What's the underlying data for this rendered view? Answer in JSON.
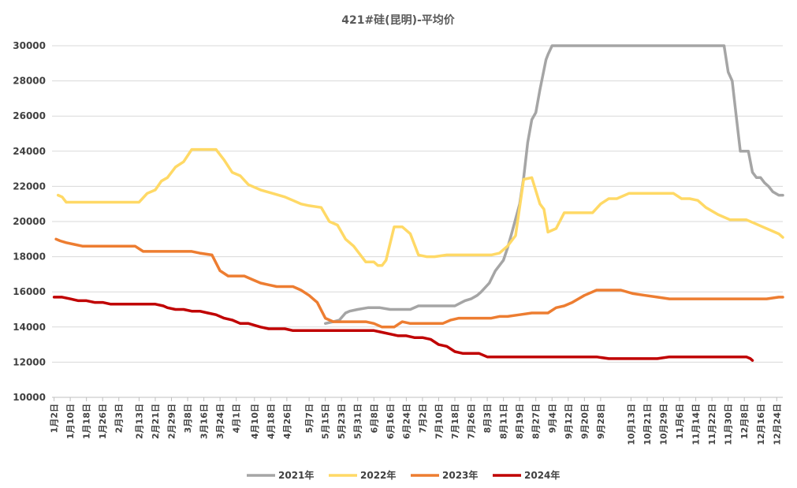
{
  "chart_data": {
    "type": "line",
    "title": "421#硅(昆明)-平均价",
    "xlabel": "",
    "ylabel": "",
    "ylim": [
      10000,
      30000
    ],
    "yticks": [
      10000,
      12000,
      14000,
      16000,
      18000,
      20000,
      22000,
      24000,
      26000,
      28000,
      30000
    ],
    "xlim": [
      1,
      362
    ],
    "grid": "horizontal",
    "legend_position": "bottom",
    "categories": [
      "1月2日",
      "1月10日",
      "1月18日",
      "1月26日",
      "2月3日",
      "2月13日",
      "2月21日",
      "2月29日",
      "3月8日",
      "3月16日",
      "3月24日",
      "4月1日",
      "4月10日",
      "4月18日",
      "4月26日",
      "5月7日",
      "5月15日",
      "5月23日",
      "5月31日",
      "6月8日",
      "6月16日",
      "6月24日",
      "7月2日",
      "7月10日",
      "7月18日",
      "7月26日",
      "8月3日",
      "8月11日",
      "8月19日",
      "8月27日",
      "9月4日",
      "9月12日",
      "9月20日",
      "9月28日",
      "10月13日",
      "10月21日",
      "10月29日",
      "11月6日",
      "11月14日",
      "11月22日",
      "11月30日",
      "12月8日",
      "12月16日",
      "12月24日"
    ],
    "category_days": [
      2,
      10,
      18,
      26,
      34,
      44,
      52,
      60,
      68,
      76,
      84,
      92,
      101,
      109,
      117,
      128,
      136,
      144,
      152,
      160,
      168,
      176,
      184,
      192,
      200,
      208,
      216,
      224,
      232,
      240,
      248,
      256,
      264,
      272,
      287,
      295,
      303,
      311,
      319,
      327,
      335,
      343,
      351,
      359
    ],
    "series": [
      {
        "name": "2021年",
        "color": "#a5a5a5",
        "x": [
          136,
          140,
          143,
          146,
          148,
          152,
          157,
          163,
          168,
          174,
          178,
          182,
          186,
          195,
          200,
          205,
          208,
          211,
          213,
          217,
          220,
          224,
          226,
          228,
          232,
          234,
          236,
          238,
          240,
          242,
          245,
          246,
          248,
          250,
          252,
          254,
          256,
          258,
          260,
          262,
          264,
          266,
          268,
          270,
          272,
          274,
          276,
          278,
          280,
          282,
          284,
          286,
          288,
          290,
          292,
          294,
          296,
          298,
          300,
          302,
          304,
          306,
          308,
          310,
          312,
          314,
          316,
          318,
          320,
          322,
          324,
          326,
          328,
          330,
          332,
          333,
          335,
          337,
          339,
          341,
          343,
          345,
          347,
          349,
          351,
          353,
          355,
          357,
          360,
          362
        ],
        "y": [
          14200,
          14300,
          14400,
          14800,
          14900,
          15000,
          15100,
          15100,
          15000,
          15000,
          15000,
          15200,
          15200,
          15200,
          15200,
          15500,
          15600,
          15800,
          16000,
          16500,
          17200,
          17800,
          18500,
          19300,
          21000,
          22500,
          24500,
          25800,
          26200,
          27500,
          29200,
          29500,
          30000,
          30000,
          30000,
          30000,
          30000,
          30000,
          30000,
          30000,
          30000,
          30000,
          30000,
          30000,
          30000,
          30000,
          30000,
          30000,
          30000,
          30000,
          30000,
          30000,
          30000,
          30000,
          30000,
          30000,
          30000,
          30000,
          30000,
          30000,
          30000,
          30000,
          30000,
          30000,
          30000,
          30000,
          30000,
          30000,
          30000,
          30000,
          30000,
          30000,
          30000,
          30000,
          30000,
          30000,
          28500,
          28000,
          26000,
          24000,
          24000,
          24000,
          22800,
          22500,
          22500,
          22200,
          22000,
          21700,
          21500,
          21500
        ]
      },
      {
        "name": "2022年",
        "color": "#ffd966",
        "x": [
          4,
          6,
          8,
          12,
          20,
          30,
          40,
          44,
          48,
          52,
          55,
          58,
          62,
          66,
          70,
          74,
          78,
          82,
          86,
          90,
          94,
          98,
          104,
          110,
          116,
          120,
          124,
          128,
          134,
          138,
          142,
          146,
          150,
          156,
          160,
          162,
          164,
          166,
          170,
          174,
          178,
          182,
          186,
          190,
          196,
          202,
          208,
          214,
          218,
          222,
          226,
          230,
          234,
          238,
          242,
          244,
          246,
          250,
          254,
          260,
          264,
          268,
          272,
          276,
          280,
          286,
          290,
          296,
          302,
          308,
          312,
          316,
          320,
          324,
          330,
          336,
          340,
          344,
          348,
          352,
          356,
          360,
          362
        ],
        "y": [
          21500,
          21400,
          21100,
          21100,
          21100,
          21100,
          21100,
          21100,
          21600,
          21800,
          22300,
          22500,
          23100,
          23400,
          24100,
          24100,
          24100,
          24100,
          23500,
          22800,
          22600,
          22100,
          21800,
          21600,
          21400,
          21200,
          21000,
          20900,
          20800,
          20000,
          19800,
          19000,
          18600,
          17700,
          17700,
          17500,
          17500,
          17800,
          19700,
          19700,
          19300,
          18100,
          18000,
          18000,
          18100,
          18100,
          18100,
          18100,
          18100,
          18200,
          18600,
          19200,
          22400,
          22500,
          21000,
          20700,
          19400,
          19600,
          20500,
          20500,
          20500,
          20500,
          21000,
          21300,
          21300,
          21600,
          21600,
          21600,
          21600,
          21600,
          21300,
          21300,
          21200,
          20800,
          20400,
          20100,
          20100,
          20100,
          19900,
          19700,
          19500,
          19300,
          19100
        ]
      },
      {
        "name": "2023年",
        "color": "#ed7d31",
        "x": [
          3,
          5,
          8,
          12,
          16,
          20,
          26,
          34,
          38,
          42,
          46,
          50,
          54,
          58,
          62,
          66,
          70,
          74,
          80,
          84,
          88,
          92,
          96,
          100,
          104,
          108,
          112,
          116,
          120,
          124,
          128,
          132,
          136,
          140,
          144,
          148,
          152,
          156,
          160,
          164,
          170,
          174,
          178,
          182,
          186,
          190,
          194,
          198,
          202,
          206,
          210,
          214,
          218,
          222,
          226,
          232,
          238,
          242,
          246,
          250,
          254,
          258,
          264,
          270,
          276,
          282,
          288,
          294,
          300,
          306,
          312,
          318,
          324,
          330,
          336,
          342,
          348,
          354,
          360,
          362
        ],
        "y": [
          19000,
          18900,
          18800,
          18700,
          18600,
          18600,
          18600,
          18600,
          18600,
          18600,
          18300,
          18300,
          18300,
          18300,
          18300,
          18300,
          18300,
          18200,
          18100,
          17200,
          16900,
          16900,
          16900,
          16700,
          16500,
          16400,
          16300,
          16300,
          16300,
          16100,
          15800,
          15400,
          14500,
          14300,
          14300,
          14300,
          14300,
          14300,
          14200,
          14000,
          14000,
          14300,
          14200,
          14200,
          14200,
          14200,
          14200,
          14400,
          14500,
          14500,
          14500,
          14500,
          14500,
          14600,
          14600,
          14700,
          14800,
          14800,
          14800,
          15100,
          15200,
          15400,
          15800,
          16100,
          16100,
          16100,
          15900,
          15800,
          15700,
          15600,
          15600,
          15600,
          15600,
          15600,
          15600,
          15600,
          15600,
          15600,
          15700,
          15700
        ]
      },
      {
        "name": "2024年",
        "color": "#c00000",
        "x": [
          2,
          6,
          10,
          14,
          18,
          22,
          26,
          30,
          34,
          40,
          46,
          52,
          56,
          58,
          62,
          66,
          70,
          74,
          78,
          82,
          86,
          90,
          94,
          98,
          104,
          108,
          112,
          116,
          120,
          128,
          136,
          144,
          152,
          160,
          164,
          168,
          172,
          176,
          180,
          184,
          188,
          192,
          196,
          200,
          204,
          208,
          212,
          216,
          220,
          224,
          228,
          232,
          236,
          240,
          246,
          252,
          258,
          264,
          270,
          276,
          282,
          288,
          294,
          300,
          306,
          312,
          318,
          324,
          330,
          336,
          342,
          344,
          346,
          347
        ],
        "y": [
          15700,
          15700,
          15600,
          15500,
          15500,
          15400,
          15400,
          15300,
          15300,
          15300,
          15300,
          15300,
          15200,
          15100,
          15000,
          15000,
          14900,
          14900,
          14800,
          14700,
          14500,
          14400,
          14200,
          14200,
          14000,
          13900,
          13900,
          13900,
          13800,
          13800,
          13800,
          13800,
          13800,
          13800,
          13700,
          13600,
          13500,
          13500,
          13400,
          13400,
          13300,
          13000,
          12900,
          12600,
          12500,
          12500,
          12500,
          12300,
          12300,
          12300,
          12300,
          12300,
          12300,
          12300,
          12300,
          12300,
          12300,
          12300,
          12300,
          12200,
          12200,
          12200,
          12200,
          12200,
          12300,
          12300,
          12300,
          12300,
          12300,
          12300,
          12300,
          12300,
          12200,
          12100
        ]
      }
    ]
  }
}
